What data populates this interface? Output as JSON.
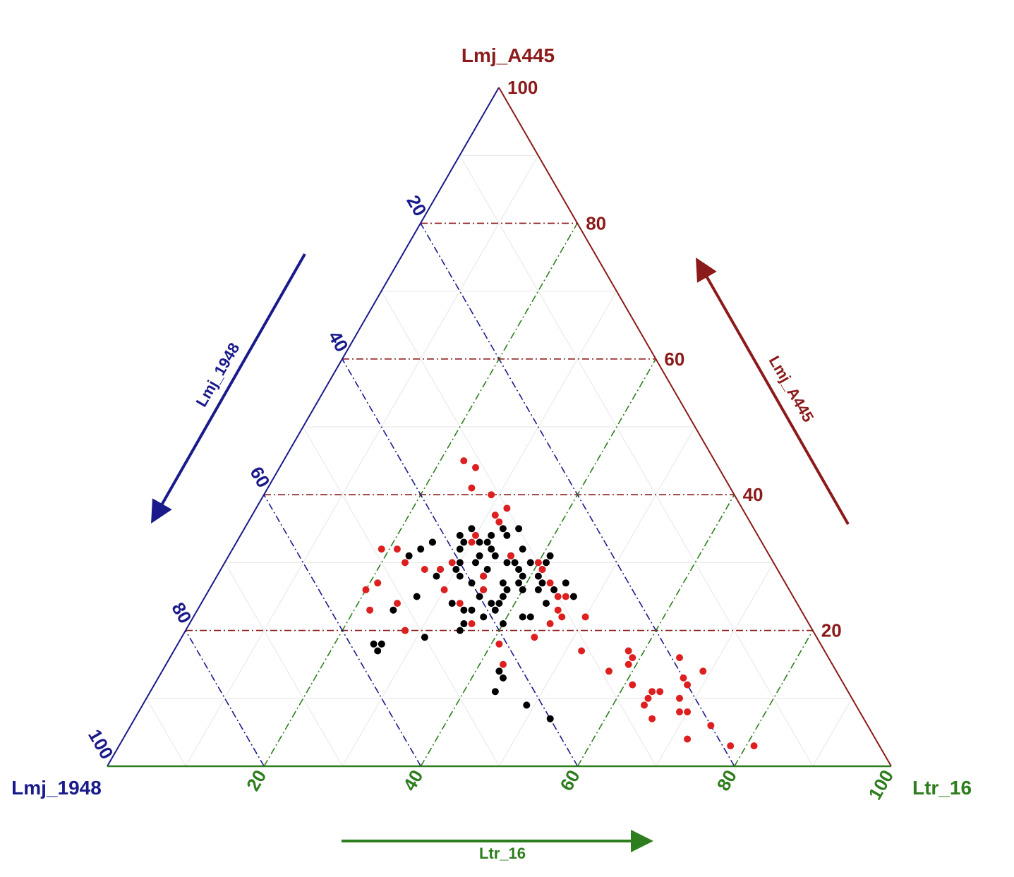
{
  "chart_data": {
    "type": "scatter",
    "subtype": "ternary",
    "axes": {
      "top": {
        "name": "Lmj_A445",
        "color": "#8b1a1a",
        "ticks": [
          "20",
          "40",
          "60",
          "80",
          "100"
        ]
      },
      "left": {
        "name": "Lmj_1948",
        "color": "#1a1a8b",
        "ticks": [
          "20",
          "40",
          "60",
          "80",
          "100"
        ]
      },
      "right": {
        "name": "Ltr_16",
        "color": "#2e7d1e",
        "ticks": [
          "20",
          "40",
          "60",
          "80",
          "100"
        ]
      }
    },
    "grid": true,
    "series": [
      {
        "color": "#000000",
        "points": [
          [
            20,
            45,
            35
          ],
          [
            23,
            52,
            25
          ],
          [
            20,
            52,
            28
          ],
          [
            19,
            50,
            31
          ],
          [
            25,
            48,
            27
          ],
          [
            14,
            43,
            43
          ],
          [
            13,
            43,
            44
          ],
          [
            11,
            45,
            44
          ],
          [
            9,
            42,
            49
          ],
          [
            7,
            40,
            53
          ],
          [
            33,
            42,
            25
          ],
          [
            34,
            38,
            28
          ],
          [
            31,
            46,
            23
          ],
          [
            28,
            44,
            28
          ],
          [
            30,
            33,
            37
          ],
          [
            18,
            56,
            26
          ],
          [
            17,
            57,
            26
          ],
          [
            18,
            57,
            25
          ],
          [
            23,
            43,
            34
          ],
          [
            21,
            44,
            35
          ],
          [
            24,
            44,
            32
          ],
          [
            22,
            41,
            37
          ],
          [
            26,
            39,
            35
          ],
          [
            29,
            37,
            34
          ],
          [
            31,
            35,
            34
          ],
          [
            33,
            36,
            31
          ],
          [
            35,
            32,
            33
          ],
          [
            30,
            31,
            39
          ],
          [
            27,
            34,
            39
          ],
          [
            26,
            30,
            44
          ],
          [
            25,
            37,
            38
          ],
          [
            24,
            39,
            37
          ],
          [
            28,
            41,
            31
          ],
          [
            29,
            43,
            28
          ],
          [
            32,
            39,
            29
          ],
          [
            31,
            33,
            36
          ],
          [
            28,
            31,
            41
          ],
          [
            33,
            38,
            29
          ],
          [
            34,
            34,
            32
          ],
          [
            32,
            35,
            33
          ],
          [
            29,
            30,
            41
          ],
          [
            26,
            32,
            42
          ],
          [
            27,
            28,
            45
          ],
          [
            25,
            28,
            47
          ],
          [
            30,
            34,
            36
          ],
          [
            29,
            33,
            38
          ],
          [
            27,
            36,
            37
          ],
          [
            25,
            40,
            35
          ],
          [
            23,
            42,
            35
          ],
          [
            22,
            36,
            42
          ],
          [
            24,
            38,
            38
          ],
          [
            26,
            36,
            38
          ],
          [
            28,
            38,
            34
          ],
          [
            30,
            40,
            30
          ],
          [
            31,
            37,
            32
          ],
          [
            33,
            35,
            32
          ],
          [
            35,
            36,
            29
          ],
          [
            34,
            32,
            34
          ],
          [
            32,
            31,
            37
          ],
          [
            30,
            29,
            41
          ],
          [
            28,
            33,
            39
          ],
          [
            26,
            34,
            40
          ],
          [
            27,
            40,
            33
          ],
          [
            29,
            41,
            30
          ],
          [
            23,
            39,
            38
          ],
          [
            21,
            39,
            40
          ],
          [
            22,
            35,
            43
          ],
          [
            24,
            32,
            44
          ],
          [
            31,
            28,
            41
          ],
          [
            35,
            30,
            35
          ],
          [
            27,
            31,
            42
          ],
          [
            33,
            42,
            25
          ],
          [
            32,
            44,
            24
          ],
          [
            30,
            38,
            32
          ]
        ]
      },
      {
        "color": "#dd1f1f",
        "points": [
          [
            4,
            24,
            72
          ],
          [
            7,
            27,
            66
          ],
          [
            8,
            23,
            69
          ],
          [
            9,
            27,
            64
          ],
          [
            3,
            19,
            78
          ],
          [
            3,
            16,
            81
          ],
          [
            11,
            24,
            65
          ],
          [
            10,
            22,
            68
          ],
          [
            13,
            20,
            67
          ],
          [
            16,
            25,
            59
          ],
          [
            17,
            25,
            58
          ],
          [
            26,
            44,
            30
          ],
          [
            24,
            43,
            33
          ],
          [
            28,
            38,
            34
          ],
          [
            21,
            43,
            36
          ],
          [
            26,
            39,
            35
          ],
          [
            29,
            45,
            26
          ],
          [
            30,
            47,
            23
          ],
          [
            20,
            52,
            28
          ],
          [
            24,
            51,
            25
          ],
          [
            33,
            37,
            30
          ],
          [
            34,
            36,
            30
          ],
          [
            36,
            32,
            32
          ],
          [
            38,
            30,
            32
          ],
          [
            41,
            33,
            26
          ],
          [
            45,
            32,
            23
          ],
          [
            44,
            31,
            25
          ],
          [
            40,
            31,
            29
          ],
          [
            37,
            32,
            31
          ],
          [
            14,
            29,
            57
          ],
          [
            12,
            27,
            61
          ],
          [
            10,
            26,
            64
          ],
          [
            15,
            26,
            59
          ],
          [
            17,
            31,
            52
          ],
          [
            11,
            25,
            64
          ],
          [
            16,
            19,
            65
          ],
          [
            22,
            28,
            50
          ],
          [
            23,
            31,
            46
          ],
          [
            25,
            30,
            45
          ],
          [
            27,
            30,
            43
          ],
          [
            29,
            30,
            41
          ],
          [
            25,
            29,
            46
          ],
          [
            21,
            33,
            46
          ],
          [
            30,
            41,
            29
          ],
          [
            29,
            43,
            28
          ],
          [
            32,
            47,
            21
          ],
          [
            27,
            52,
            21
          ],
          [
            32,
            49,
            19
          ],
          [
            26,
            54,
            20
          ],
          [
            23,
            55,
            22
          ],
          [
            12,
            20,
            68
          ],
          [
            14,
            17,
            69
          ],
          [
            8,
            22,
            70
          ],
          [
            6,
            20,
            74
          ],
          [
            19,
            36,
            45
          ],
          [
            15,
            42,
            43
          ],
          [
            18,
            41,
            41
          ],
          [
            22,
            31,
            47
          ],
          [
            30,
            30,
            40
          ],
          [
            31,
            33,
            36
          ]
        ]
      }
    ]
  }
}
